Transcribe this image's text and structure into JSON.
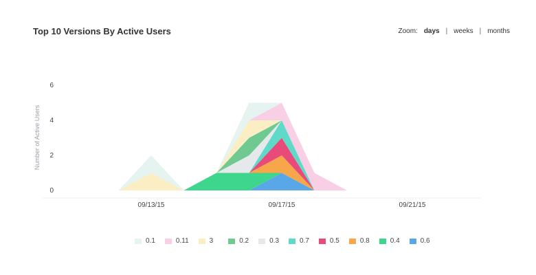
{
  "header": {
    "title": "Top 10 Versions By Active Users"
  },
  "zoom": {
    "label": "Zoom:",
    "options": [
      "days",
      "weeks",
      "months"
    ],
    "active": "days"
  },
  "chart_data": {
    "type": "area",
    "stacked": true,
    "title": "Top 10 Versions By Active Users",
    "ylabel": "Number of Active Users",
    "xlabel": "",
    "ylim": [
      0,
      6
    ],
    "yticks": [
      0,
      2,
      4,
      6
    ],
    "x": [
      "09/11/15",
      "09/12/15",
      "09/13/15",
      "09/14/15",
      "09/15/15",
      "09/16/15",
      "09/17/15",
      "09/18/15",
      "09/19/15",
      "09/20/15",
      "09/21/15"
    ],
    "xtick_labels": [
      "09/13/15",
      "09/17/15",
      "09/21/15"
    ],
    "series": [
      {
        "name": "0.6",
        "color": "#5aa7e8",
        "values": [
          0,
          0,
          0,
          0,
          0,
          0,
          1,
          0,
          0,
          0,
          0
        ]
      },
      {
        "name": "0.4",
        "color": "#3dd68c",
        "values": [
          0,
          0,
          0,
          0,
          1,
          1,
          0,
          0,
          0,
          0,
          0
        ]
      },
      {
        "name": "0.8",
        "color": "#f7a64a",
        "values": [
          0,
          0,
          0,
          0,
          0,
          0,
          1,
          0,
          0,
          0,
          0
        ]
      },
      {
        "name": "0.5",
        "color": "#e84b7a",
        "values": [
          0,
          0,
          0,
          0,
          0,
          0,
          1,
          0,
          0,
          0,
          0
        ]
      },
      {
        "name": "0.7",
        "color": "#5fd9c8",
        "values": [
          0,
          0,
          0,
          0,
          0,
          0,
          1,
          0,
          0,
          0,
          0
        ]
      },
      {
        "name": "0.3",
        "color": "#e6e9ec",
        "values": [
          0,
          0,
          0,
          0,
          0,
          1,
          0,
          0,
          0,
          0,
          0
        ]
      },
      {
        "name": "0.2",
        "color": "#6fc991",
        "values": [
          0,
          0,
          0,
          0,
          0,
          1,
          0,
          0,
          0,
          0,
          0
        ]
      },
      {
        "name": "3",
        "color": "#fbeec4",
        "values": [
          0,
          0,
          1,
          0,
          0,
          1,
          0,
          0,
          0,
          0,
          0
        ]
      },
      {
        "name": "0.11",
        "color": "#f9cfe6",
        "values": [
          0,
          0,
          0,
          0,
          0,
          0,
          1,
          1,
          0,
          0,
          0
        ]
      },
      {
        "name": "0.1",
        "color": "#e5f3f1",
        "values": [
          0,
          0,
          1,
          0,
          0,
          1,
          0,
          0,
          0,
          0,
          0
        ]
      }
    ],
    "legend_order": [
      "0.1",
      "0.11",
      "3",
      "0.2",
      "0.3",
      "0.7",
      "0.5",
      "0.8",
      "0.4",
      "0.6"
    ],
    "legend_position": "bottom",
    "grid": false
  }
}
